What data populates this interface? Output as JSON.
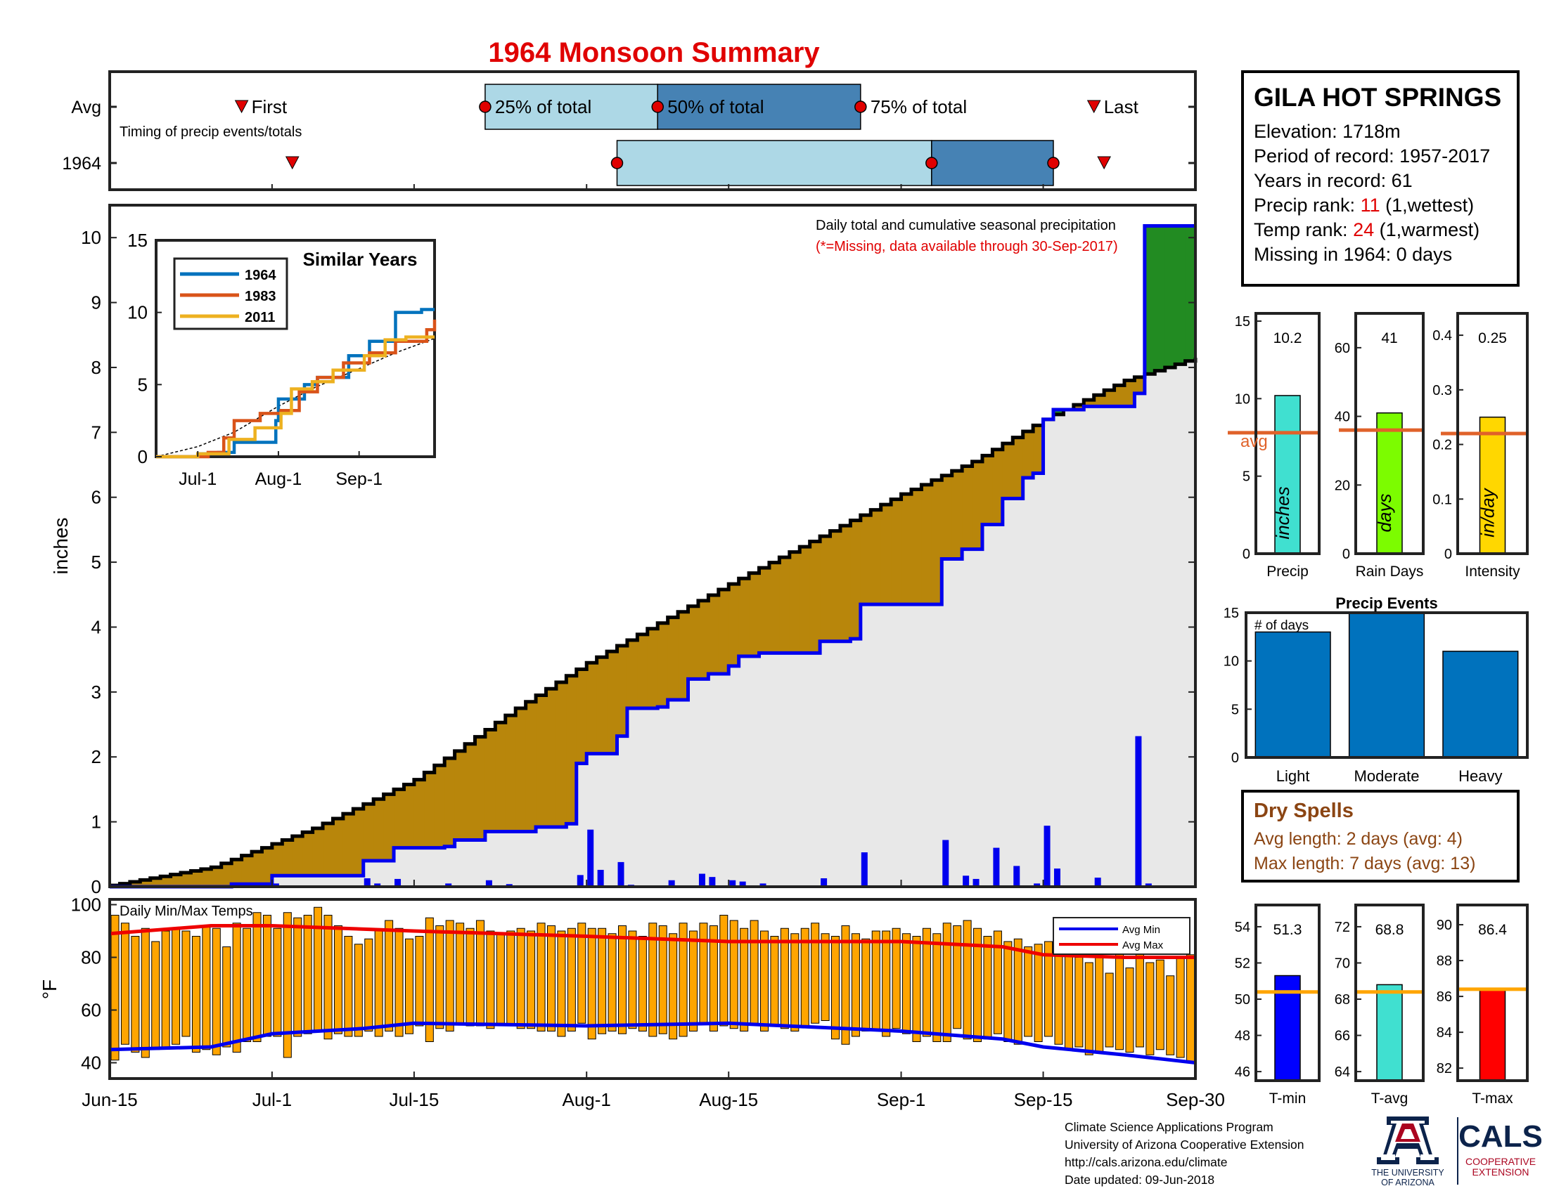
{
  "title": "1964 Monsoon Summary",
  "timing": {
    "row_avg": "Avg",
    "row_year": "1964",
    "first": "First",
    "last": "Last",
    "q25": "25% of total",
    "q50": "50% of total",
    "q75": "75% of total",
    "subtitle": "Timing of precip events/totals",
    "avg_days": {
      "first": 13,
      "q25": 37,
      "q50": 54,
      "q75": 74,
      "last": 97
    },
    "year_days": {
      "first": 18,
      "q25": 50,
      "q50": 81,
      "q75": 93,
      "last": 98
    },
    "x_start": 0,
    "x_end": 107
  },
  "station": {
    "name": "GILA HOT SPRINGS",
    "elev_label": "Elevation: ",
    "elev": "1718m",
    "period_label": "Period of record: ",
    "period": "1957-2017",
    "years_label": "Years in record: ",
    "years": "61",
    "precip_rank_label": "Precip rank: ",
    "precip_rank": "11",
    "precip_rank_note": " (1,wettest)",
    "temp_rank_label": "Temp rank: ",
    "temp_rank": "24",
    "temp_rank_note": " (1,warmest)",
    "missing_label": "Missing in 1964: ",
    "missing": "0 days"
  },
  "dry_spells": {
    "title": "Dry Spells",
    "avg_line": "Avg length: 2 days (avg: 4)",
    "max_line": "Max length: 7 days (avg: 13)"
  },
  "footer": {
    "line1": "Climate Science Applications Program",
    "line2": "University of Arizona Cooperative Extension",
    "line3": "http://cals.arizona.edu/climate",
    "line4": "Date updated: 09-Jun-2018",
    "logo_ua_line1": "THE UNIVERSITY",
    "logo_ua_line2": "OF ARIZONA",
    "logo_cals": "CALS",
    "logo_cals_line1": "COOPERATIVE",
    "logo_cals_line2": "EXTENSION"
  },
  "colors": {
    "title_red": "#e00000",
    "green_fill": "#228b22",
    "brown_fill": "#b8860b",
    "gray_fill": "#e8e8e8",
    "blue_line": "#0000ee",
    "orange_bar": "#ffa500",
    "avg_orange": "#e0622a",
    "light_blue_box": "#add8e6",
    "dark_blue_box": "#4682b4",
    "event_bar": "#0072bd"
  },
  "chart_data": [
    {
      "id": "cumulative",
      "type": "area",
      "title": "Daily total and cumulative seasonal precipitation",
      "note": "(*=Missing, data available through 30-Sep-2017)",
      "ylabel": "inches",
      "ylim": [
        0,
        10.5
      ],
      "yticks": [
        0,
        1,
        2,
        3,
        4,
        5,
        6,
        7,
        8,
        9,
        10
      ],
      "x_day_range": [
        0,
        107
      ],
      "xticks": [
        {
          "label": "Jun-15",
          "day": 0
        },
        {
          "label": "Jul-1",
          "day": 16
        },
        {
          "label": "Jul-15",
          "day": 30
        },
        {
          "label": "Aug-1",
          "day": 47
        },
        {
          "label": "Aug-15",
          "day": 61
        },
        {
          "label": "Sep-1",
          "day": 78
        },
        {
          "label": "Sep-15",
          "day": 92
        },
        {
          "label": "Sep-30",
          "day": 107
        }
      ],
      "avg_cumulative": [
        [
          0,
          0.02
        ],
        [
          10,
          0.3
        ],
        [
          20,
          0.9
        ],
        [
          30,
          1.65
        ],
        [
          40,
          2.75
        ],
        [
          47,
          3.45
        ],
        [
          55,
          4.15
        ],
        [
          62,
          4.75
        ],
        [
          70,
          5.4
        ],
        [
          78,
          6.05
        ],
        [
          85,
          6.55
        ],
        [
          92,
          7.2
        ],
        [
          100,
          7.8
        ],
        [
          107,
          8.15
        ]
      ],
      "year_cumulative": [
        [
          0,
          0.0
        ],
        [
          12,
          0.04
        ],
        [
          16,
          0.17
        ],
        [
          24,
          0.17
        ],
        [
          25,
          0.4
        ],
        [
          28,
          0.6
        ],
        [
          33,
          0.62
        ],
        [
          34,
          0.72
        ],
        [
          37,
          0.85
        ],
        [
          42,
          0.92
        ],
        [
          45,
          0.97
        ],
        [
          46,
          1.9
        ],
        [
          47,
          2.05
        ],
        [
          50,
          2.32
        ],
        [
          51,
          2.75
        ],
        [
          54,
          2.77
        ],
        [
          55,
          2.88
        ],
        [
          57,
          3.2
        ],
        [
          59,
          3.28
        ],
        [
          61,
          3.4
        ],
        [
          62,
          3.55
        ],
        [
          64,
          3.6
        ],
        [
          70,
          3.78
        ],
        [
          73,
          3.82
        ],
        [
          74,
          4.35
        ],
        [
          81,
          4.35
        ],
        [
          82,
          5.05
        ],
        [
          84,
          5.2
        ],
        [
          86,
          5.58
        ],
        [
          88,
          5.98
        ],
        [
          90,
          6.3
        ],
        [
          91,
          6.37
        ],
        [
          92,
          7.2
        ],
        [
          93,
          7.35
        ],
        [
          96,
          7.4
        ],
        [
          101,
          7.6
        ],
        [
          102,
          10.18
        ],
        [
          107,
          10.18
        ]
      ],
      "daily_precip": [
        [
          14,
          0.02
        ],
        [
          16,
          0.05
        ],
        [
          25,
          0.13
        ],
        [
          26,
          0.05
        ],
        [
          28,
          0.12
        ],
        [
          33,
          0.05
        ],
        [
          37,
          0.1
        ],
        [
          39,
          0.04
        ],
        [
          46,
          0.18
        ],
        [
          47,
          0.88
        ],
        [
          48,
          0.26
        ],
        [
          50,
          0.38
        ],
        [
          51,
          0.03
        ],
        [
          55,
          0.1
        ],
        [
          58,
          0.2
        ],
        [
          59,
          0.15
        ],
        [
          61,
          0.1
        ],
        [
          62,
          0.08
        ],
        [
          64,
          0.05
        ],
        [
          70,
          0.13
        ],
        [
          74,
          0.53
        ],
        [
          82,
          0.72
        ],
        [
          84,
          0.17
        ],
        [
          85,
          0.12
        ],
        [
          87,
          0.6
        ],
        [
          89,
          0.32
        ],
        [
          91,
          0.05
        ],
        [
          92,
          0.94
        ],
        [
          93,
          0.28
        ],
        [
          97,
          0.14
        ],
        [
          101,
          2.32
        ],
        [
          102,
          0.05
        ]
      ]
    },
    {
      "id": "similar_years",
      "type": "line",
      "title": "Similar Years",
      "ylim": [
        0,
        15
      ],
      "yticks": [
        0,
        5,
        10,
        15
      ],
      "x_day_range": [
        0,
        107
      ],
      "xticks": [
        {
          "label": "Jul-1",
          "day": 16
        },
        {
          "label": "Aug-1",
          "day": 47
        },
        {
          "label": "Sep-1",
          "day": 78
        }
      ],
      "series": [
        {
          "name": "1964",
          "color": "#0072bd",
          "points": [
            [
              0,
              0
            ],
            [
              16,
              0.2
            ],
            [
              24,
              0.3
            ],
            [
              30,
              1.0
            ],
            [
              46,
              2.5
            ],
            [
              47,
              4.0
            ],
            [
              57,
              5.0
            ],
            [
              62,
              5.5
            ],
            [
              74,
              7.0
            ],
            [
              82,
              8.0
            ],
            [
              92,
              10.0
            ],
            [
              102,
              10.2
            ],
            [
              107,
              10.2
            ]
          ]
        },
        {
          "name": "1983",
          "color": "#d95319",
          "points": [
            [
              0,
              0
            ],
            [
              20,
              0.3
            ],
            [
              26,
              1.3
            ],
            [
              30,
              2.5
            ],
            [
              40,
              3.0
            ],
            [
              48,
              3.2
            ],
            [
              55,
              4.5
            ],
            [
              62,
              5.5
            ],
            [
              72,
              6.5
            ],
            [
              82,
              7.2
            ],
            [
              92,
              8.0
            ],
            [
              104,
              8.8
            ],
            [
              107,
              9.5
            ]
          ]
        },
        {
          "name": "2011",
          "color": "#edb120",
          "points": [
            [
              0,
              0
            ],
            [
              16,
              0.2
            ],
            [
              28,
              1.2
            ],
            [
              38,
              2.0
            ],
            [
              48,
              3.0
            ],
            [
              52,
              4.7
            ],
            [
              60,
              5.2
            ],
            [
              68,
              6.0
            ],
            [
              80,
              7.0
            ],
            [
              88,
              8.1
            ],
            [
              96,
              8.3
            ],
            [
              107,
              8.3
            ]
          ]
        }
      ],
      "avg_series": [
        [
          0,
          0
        ],
        [
          16,
          0.7
        ],
        [
          30,
          1.7
        ],
        [
          47,
          3.5
        ],
        [
          61,
          4.8
        ],
        [
          78,
          6.1
        ],
        [
          92,
          7.2
        ],
        [
          107,
          8.2
        ]
      ]
    },
    {
      "id": "temps",
      "type": "bar",
      "title": "Daily Min/Max Temps",
      "ylabel": "°F",
      "ylim": [
        34,
        102
      ],
      "yticks": [
        40,
        60,
        80,
        100
      ],
      "legend": [
        "Avg Min",
        "Avg Max"
      ],
      "avg_min": [
        [
          0,
          45
        ],
        [
          10,
          46
        ],
        [
          16,
          51
        ],
        [
          25,
          53
        ],
        [
          30,
          55
        ],
        [
          47,
          54
        ],
        [
          61,
          55
        ],
        [
          78,
          52
        ],
        [
          88,
          49
        ],
        [
          92,
          46
        ],
        [
          100,
          43
        ],
        [
          107,
          40
        ]
      ],
      "avg_max": [
        [
          0,
          89
        ],
        [
          10,
          92
        ],
        [
          16,
          92
        ],
        [
          30,
          90
        ],
        [
          47,
          88
        ],
        [
          61,
          86
        ],
        [
          78,
          86
        ],
        [
          88,
          84
        ],
        [
          92,
          81
        ],
        [
          100,
          80
        ],
        [
          107,
          80
        ]
      ],
      "daily_min": [
        41,
        47,
        44,
        42,
        45,
        46,
        47,
        50,
        44,
        45,
        43,
        46,
        44,
        48,
        48,
        50,
        50,
        42,
        50,
        51,
        52,
        49,
        51,
        50,
        50,
        52,
        50,
        52,
        50,
        51,
        54,
        48,
        53,
        52,
        55,
        54,
        54,
        53,
        55,
        54,
        53,
        53,
        52,
        52,
        50,
        52,
        55,
        49,
        51,
        52,
        51,
        53,
        52,
        50,
        51,
        49,
        50,
        52,
        55,
        52,
        54,
        53,
        52,
        55,
        52,
        54,
        53,
        52,
        54,
        55,
        56,
        49,
        47,
        50,
        52,
        52,
        50,
        53,
        51,
        48,
        50,
        48,
        48,
        53,
        49,
        48,
        49,
        51,
        48,
        47,
        50,
        48,
        50,
        47,
        45,
        46,
        43,
        44,
        46,
        45,
        44,
        46,
        43,
        45,
        43,
        42,
        40
      ],
      "daily_max": [
        96,
        93,
        88,
        91,
        86,
        90,
        91,
        90,
        88,
        92,
        91,
        84,
        93,
        91,
        97,
        96,
        91,
        97,
        95,
        96,
        99,
        96,
        92,
        88,
        85,
        87,
        90,
        94,
        91,
        87,
        88,
        95,
        92,
        94,
        93,
        91,
        94,
        90,
        89,
        90,
        91,
        90,
        93,
        92,
        90,
        91,
        93,
        91,
        91,
        89,
        92,
        90,
        88,
        93,
        92,
        89,
        93,
        90,
        93,
        92,
        96,
        94,
        91,
        94,
        90,
        88,
        91,
        89,
        91,
        93,
        89,
        88,
        92,
        89,
        87,
        90,
        90,
        91,
        89,
        88,
        91,
        89,
        93,
        92,
        94,
        91,
        88,
        90,
        86,
        87,
        84,
        85,
        86,
        85,
        83,
        80,
        78,
        80,
        74,
        82,
        76,
        83,
        78,
        79,
        73,
        80,
        81
      ]
    },
    {
      "id": "precip_summary",
      "type": "bar",
      "panels": [
        {
          "label": "Precip",
          "value": 10.2,
          "value_text": "10.2",
          "avg": 7.8,
          "ylim": [
            0,
            15.5
          ],
          "yticks": [
            0,
            5,
            10,
            15
          ],
          "color": "#40e0d0",
          "unit": "inches",
          "avg_label": "avg"
        },
        {
          "label": "Rain Days",
          "value": 41,
          "value_text": "41",
          "avg": 36,
          "ylim": [
            0,
            70
          ],
          "yticks": [
            0,
            20,
            40,
            60
          ],
          "color": "#7cfc00",
          "unit": "days"
        },
        {
          "label": "Intensity",
          "value": 0.25,
          "value_text": "0.25",
          "avg": 0.22,
          "ylim": [
            0,
            0.44
          ],
          "yticks": [
            0,
            0.1,
            0.2,
            0.3,
            0.4
          ],
          "color": "#ffd700",
          "unit": "in/day"
        }
      ]
    },
    {
      "id": "precip_events",
      "type": "bar",
      "title": "Precip Events",
      "ylabel_inset": "# of days",
      "ylim": [
        0,
        15
      ],
      "yticks": [
        0,
        5,
        10,
        15
      ],
      "categories": [
        "Light",
        "Moderate",
        "Heavy"
      ],
      "values": [
        13,
        15,
        11
      ]
    },
    {
      "id": "temp_summary",
      "type": "bar",
      "panels": [
        {
          "label": "T-min",
          "value": 51.3,
          "value_text": "51.3",
          "avg": 50.4,
          "ylim": [
            45.5,
            55.2
          ],
          "yticks": [
            46,
            48,
            50,
            52,
            54
          ],
          "color": "#0000ff"
        },
        {
          "label": "T-avg",
          "value": 68.8,
          "value_text": "68.8",
          "avg": 68.4,
          "ylim": [
            63.5,
            73.2
          ],
          "yticks": [
            64,
            66,
            68,
            70,
            72
          ],
          "color": "#40e0d0"
        },
        {
          "label": "T-max",
          "value": 86.4,
          "value_text": "86.4",
          "avg": 86.4,
          "ylim": [
            81.3,
            91.1
          ],
          "yticks": [
            82,
            84,
            86,
            88,
            90
          ],
          "color": "#ff0000"
        }
      ]
    }
  ]
}
